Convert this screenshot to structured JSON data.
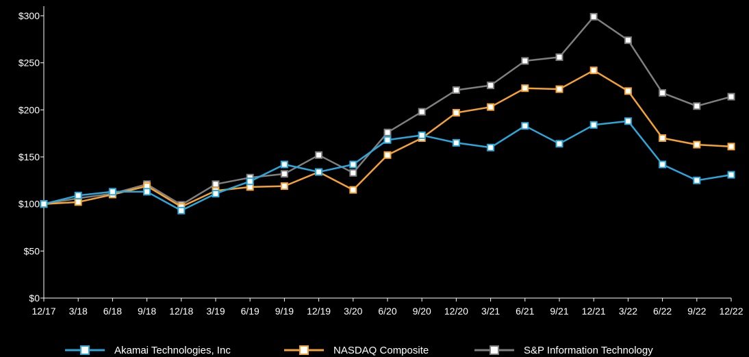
{
  "chart_data": {
    "type": "line",
    "categories": [
      "12/17",
      "3/18",
      "6/18",
      "9/18",
      "12/18",
      "3/19",
      "6/19",
      "9/19",
      "12/19",
      "3/20",
      "6/20",
      "9/20",
      "12/20",
      "3/21",
      "6/21",
      "9/21",
      "12/21",
      "3/22",
      "6/22",
      "9/22",
      "12/22"
    ],
    "series": [
      {
        "name": "Akamai Technologies, Inc",
        "color": "#2aa8dc",
        "values": [
          100,
          109,
          113,
          113,
          93,
          111,
          124,
          142,
          134,
          142,
          168,
          173,
          165,
          160,
          183,
          164,
          184,
          188,
          142,
          125,
          131
        ]
      },
      {
        "name": "NASDAQ Composite",
        "color": "#f5a233",
        "values": [
          100,
          102,
          110,
          119,
          97,
          114,
          118,
          119,
          134,
          115,
          152,
          170,
          197,
          203,
          223,
          222,
          242,
          220,
          170,
          163,
          161
        ]
      },
      {
        "name": "S&P Information Technology",
        "color": "#7f7f7f",
        "values": [
          100,
          106,
          111,
          121,
          99,
          121,
          128,
          132,
          152,
          133,
          176,
          198,
          221,
          226,
          252,
          256,
          299,
          274,
          218,
          204,
          214
        ]
      }
    ],
    "ylim": [
      0,
      300
    ],
    "yticks": [
      0,
      50,
      100,
      150,
      200,
      250,
      300
    ],
    "ytick_labels": [
      "$0",
      "$50",
      "$100",
      "$150",
      "$200",
      "$250",
      "$300"
    ],
    "xlabel": "",
    "ylabel": "",
    "title": "",
    "grid": false,
    "legend_position": "bottom"
  }
}
